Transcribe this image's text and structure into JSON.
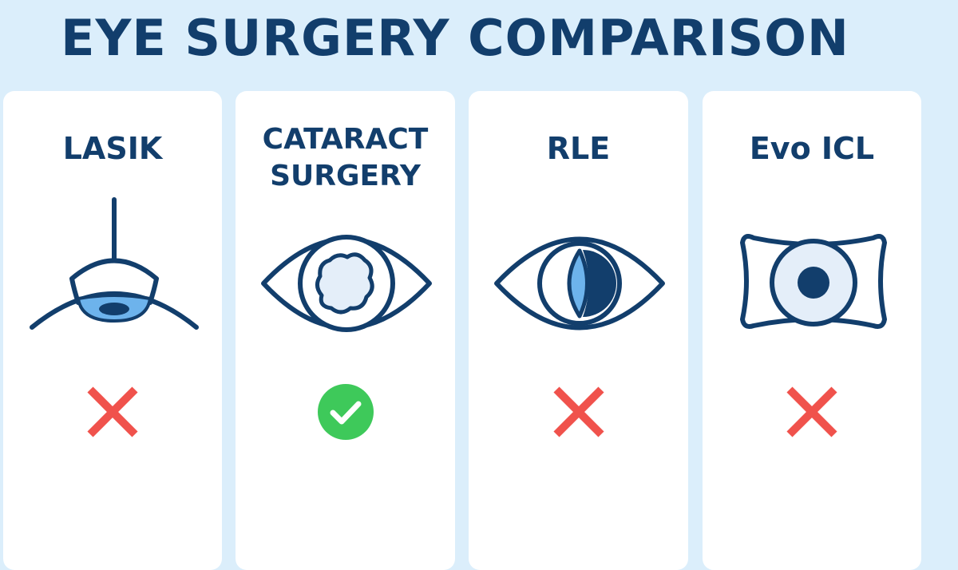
{
  "title": "EYE SURGERY COMPARISON",
  "cards": [
    {
      "title_lines": [
        "LASIK"
      ],
      "illustration": "lasik-eye-icon",
      "status": "cross",
      "status_icon": "red-x-icon"
    },
    {
      "title_lines": [
        "CATARACT",
        "SURGERY"
      ],
      "illustration": "cataract-eye-icon",
      "status": "check",
      "status_icon": "green-check-icon"
    },
    {
      "title_lines": [
        "RLE"
      ],
      "illustration": "rle-eye-icon",
      "status": "cross",
      "status_icon": "red-x-icon"
    },
    {
      "title_lines": [
        "Evo ICL"
      ],
      "illustration": "icl-lens-icon",
      "status": "cross",
      "status_icon": "red-x-icon"
    }
  ],
  "colors": {
    "background": "#dbeefb",
    "navy": "#123e6c",
    "light_blue": "#6db3ec",
    "pale_blue": "#e4eef9",
    "red": "#f0524c",
    "green": "#3ec95a"
  }
}
